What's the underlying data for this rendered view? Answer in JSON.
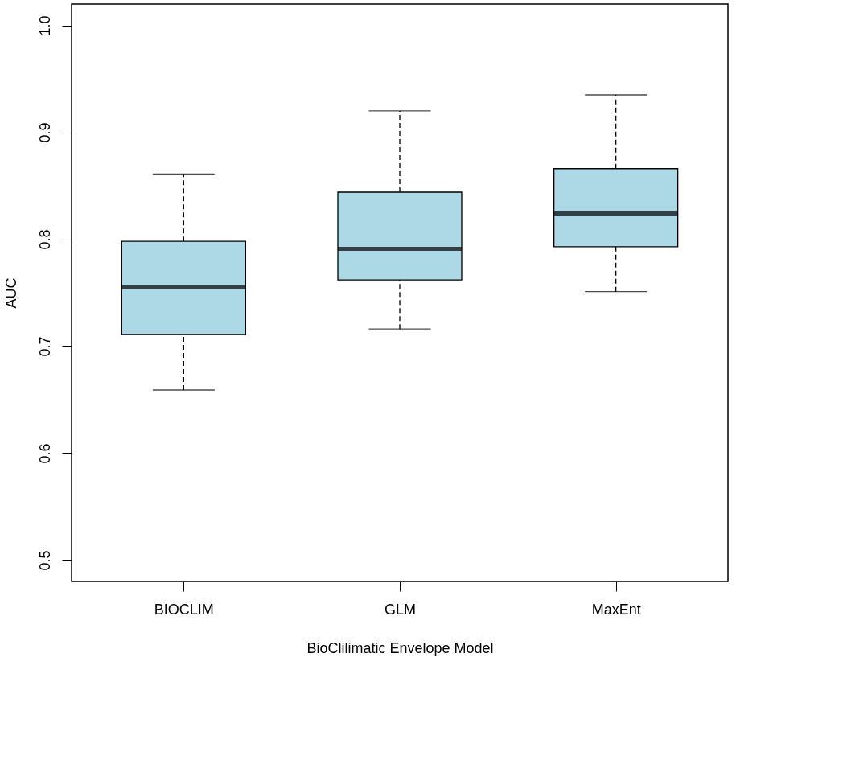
{
  "chart_data": {
    "type": "box",
    "xlabel": "BioClilimatic Envelope Model",
    "ylabel": "AUC",
    "categories": [
      "BIOCLIM",
      "GLM",
      "MaxEnt"
    ],
    "boxes": [
      {
        "low": 0.659,
        "q1": 0.711,
        "median": 0.755,
        "q3": 0.798,
        "high": 0.861
      },
      {
        "low": 0.716,
        "q1": 0.762,
        "median": 0.791,
        "q3": 0.844,
        "high": 0.92
      },
      {
        "low": 0.751,
        "q1": 0.793,
        "median": 0.824,
        "q3": 0.866,
        "high": 0.935
      }
    ],
    "color": "#add8e6",
    "ylim": [
      0.48,
      1.02
    ],
    "yticks": [
      0.5,
      0.6,
      0.7,
      0.8,
      0.9,
      {
        "value": 1,
        "label": "1.0"
      }
    ],
    "grid": false
  }
}
